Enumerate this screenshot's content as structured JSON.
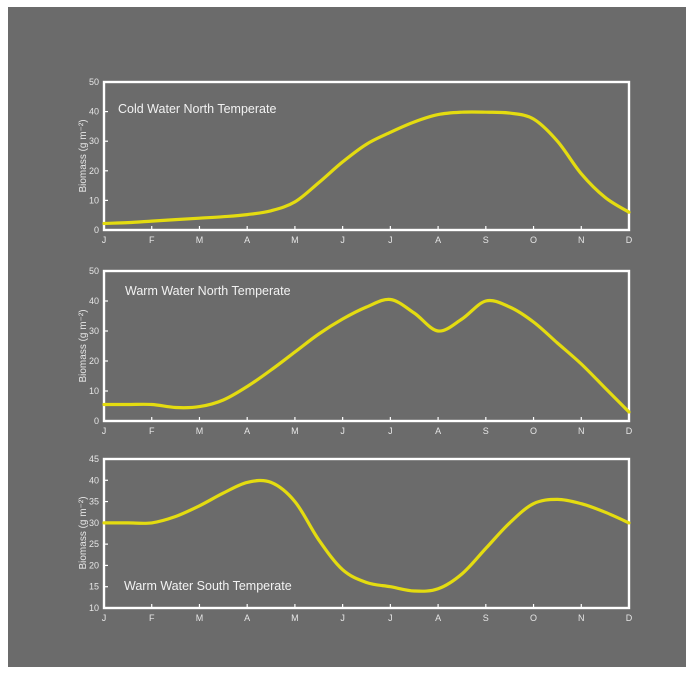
{
  "colors": {
    "background": "#6b6b6b",
    "frame": "#ffffff",
    "curve": "#e4dc10",
    "text": "#e6e6e6"
  },
  "chart_data": [
    {
      "type": "line",
      "title": "Cold Water North Temperate",
      "ylabel": "Biomass (g m⁻²)",
      "x_ticks": [
        "J",
        "F",
        "M",
        "A",
        "M",
        "J",
        "J",
        "A",
        "S",
        "O",
        "N",
        "D"
      ],
      "y_ticks": [
        "0",
        "10",
        "20",
        "30",
        "40",
        "50"
      ],
      "ylim": [
        0,
        50
      ],
      "xlim": [
        0,
        11
      ],
      "grid": false,
      "series": [
        {
          "x": [
            0,
            0.5,
            1,
            1.5,
            2,
            2.5,
            3,
            3.5,
            4,
            4.5,
            5,
            5.5,
            6,
            6.5,
            7,
            7.5,
            8,
            8.5,
            9,
            9.5,
            10,
            10.5,
            11
          ],
          "y": [
            2.2,
            2.5,
            3.0,
            3.5,
            4.0,
            4.5,
            5.2,
            6.5,
            9.5,
            16,
            23,
            29,
            33,
            36.5,
            39,
            39.8,
            39.8,
            39.5,
            37.5,
            30,
            19,
            11,
            6
          ]
        }
      ]
    },
    {
      "type": "line",
      "title": "Warm Water North Temperate",
      "ylabel": "Biomass (g m⁻²)",
      "x_ticks": [
        "J",
        "F",
        "M",
        "A",
        "M",
        "J",
        "J",
        "A",
        "S",
        "O",
        "N",
        "D"
      ],
      "y_ticks": [
        "0",
        "10",
        "20",
        "30",
        "40",
        "50"
      ],
      "ylim": [
        0,
        50
      ],
      "xlim": [
        0,
        11
      ],
      "grid": false,
      "series": [
        {
          "x": [
            0,
            0.5,
            1,
            1.5,
            2,
            2.5,
            3,
            3.5,
            4,
            4.5,
            5,
            5.5,
            6,
            6.5,
            7,
            7.5,
            8,
            8.5,
            9,
            9.5,
            10,
            10.5,
            11
          ],
          "y": [
            5.5,
            5.5,
            5.5,
            4.5,
            4.8,
            7,
            11.5,
            17,
            23,
            29,
            34,
            38,
            40.5,
            36,
            30,
            34,
            40,
            38,
            33,
            26,
            19,
            11,
            3
          ]
        }
      ]
    },
    {
      "type": "line",
      "title": "Warm Water South Temperate",
      "ylabel": "Biomass (g m⁻²)",
      "x_ticks": [
        "J",
        "F",
        "M",
        "A",
        "M",
        "J",
        "J",
        "A",
        "S",
        "O",
        "N",
        "D"
      ],
      "y_ticks": [
        "10",
        "15",
        "20",
        "25",
        "30",
        "35",
        "40",
        "45"
      ],
      "ylim": [
        10,
        45
      ],
      "xlim": [
        0,
        11
      ],
      "grid": false,
      "series": [
        {
          "x": [
            0,
            0.5,
            1,
            1.5,
            2,
            2.5,
            3,
            3.5,
            4,
            4.5,
            5,
            5.5,
            6,
            6.5,
            7,
            7.5,
            8,
            8.5,
            9,
            9.5,
            10,
            10.5,
            11
          ],
          "y": [
            30,
            30,
            30,
            31.5,
            34,
            37,
            39.5,
            39.5,
            35,
            26,
            19,
            16,
            15,
            14,
            14.5,
            18,
            24,
            30,
            34.5,
            35.5,
            34.5,
            32.5,
            30
          ]
        }
      ]
    }
  ]
}
